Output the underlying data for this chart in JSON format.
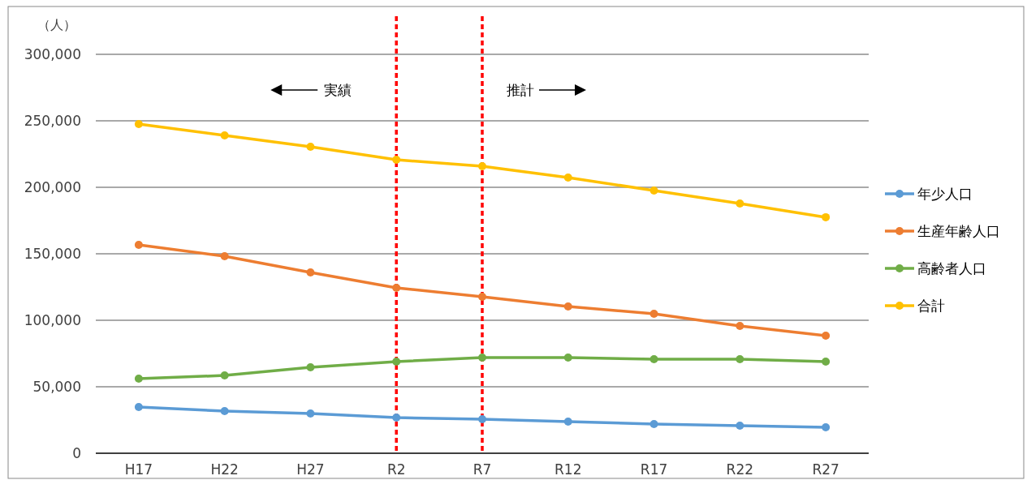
{
  "chart_data": {
    "type": "line",
    "ylabel": "（人）",
    "categories": [
      "H17",
      "H22",
      "H27",
      "R2",
      "R7",
      "R12",
      "R17",
      "R22",
      "R27"
    ],
    "series": [
      {
        "name": "年少人口",
        "color": "#5b9bd5",
        "values": [
          34800,
          31700,
          29900,
          26800,
          25600,
          23800,
          22000,
          20700,
          19500
        ]
      },
      {
        "name": "生産年齢人口",
        "color": "#ed7d31",
        "values": [
          156700,
          148200,
          136000,
          124400,
          117700,
          110400,
          104900,
          95700,
          88400
        ]
      },
      {
        "name": "高齢者人口",
        "color": "#70ad47",
        "values": [
          56100,
          58500,
          64600,
          68900,
          72000,
          72000,
          70700,
          70700,
          68900
        ]
      },
      {
        "name": "合計",
        "color": "#ffc000",
        "values": [
          247600,
          239000,
          230500,
          220700,
          215900,
          207300,
          197600,
          187800,
          177500
        ]
      }
    ],
    "ylim": [
      0,
      300000
    ],
    "yticks": [
      0,
      {
        "value": 50000,
        "label": "50,000"
      },
      {
        "value": 100000,
        "label": "100,000"
      },
      {
        "value": 150000,
        "label": "150,000"
      },
      {
        "value": 200000,
        "label": "200,000"
      },
      {
        "value": 250000,
        "label": "250,000"
      },
      {
        "value": 300000,
        "label": "300,000"
      }
    ],
    "ref_lines": [
      {
        "axis": "x",
        "value": "R2",
        "color": "#ff0000",
        "line_style": "dashed"
      },
      {
        "axis": "x",
        "value": "R7",
        "color": "#ff0000",
        "line_style": "dashed"
      }
    ],
    "annotations": [
      "実績",
      "推計"
    ],
    "grid": "y",
    "legend": "right",
    "marker": "circle",
    "line_style": "solid"
  }
}
